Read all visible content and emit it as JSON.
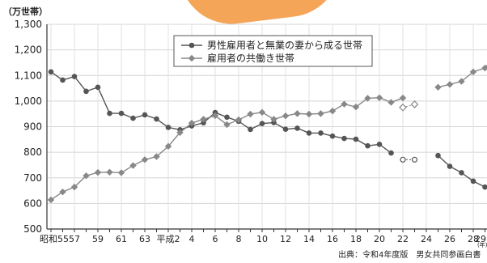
{
  "chart_data": {
    "type": "line",
    "unit_label": "（万世帯）",
    "ylim": [
      500,
      1300
    ],
    "yticks": [
      "1,300",
      "1,200",
      "1,100",
      "1,000",
      "900",
      "800",
      "700",
      "600",
      "500"
    ],
    "x_labels": [
      "昭和55",
      "57",
      "59",
      "61",
      "63",
      "平成2",
      "4",
      "6",
      "8",
      "10",
      "12",
      "14",
      "16",
      "18",
      "20",
      "22",
      "24",
      "26",
      "28",
      "29"
    ],
    "corner_unit": "(年)",
    "legend": {
      "placement": "top-center"
    },
    "series": [
      {
        "name": "男性雇用者と無業の妻から成る世帯",
        "marker": "circle",
        "color": "#555555",
        "values": [
          1114,
          1082,
          1096,
          1038,
          1054,
          952,
          952,
          933,
          946,
          930,
          897,
          888,
          903,
          915,
          955,
          937,
          921,
          889,
          912,
          916,
          890,
          894,
          875,
          875,
          863,
          854,
          851,
          825,
          831,
          797,
          null,
          null,
          null,
          787,
          745,
          720,
          687,
          664,
          641
        ],
        "estimated": [
          [
            30,
            771
          ],
          [
            31,
            771
          ]
        ]
      },
      {
        "name": "雇用者の共働き世帯",
        "marker": "diamond",
        "color": "#888888",
        "values": [
          614,
          645,
          664,
          708,
          721,
          722,
          720,
          748,
          771,
          783,
          823,
          877,
          914,
          929,
          943,
          908,
          927,
          949,
          956,
          929,
          942,
          951,
          949,
          951,
          961,
          988,
          977,
          1011,
          1013,
          995,
          1012,
          null,
          null,
          1054,
          1065,
          1077,
          1114,
          1129,
          1188
        ],
        "estimated": [
          [
            30,
            975
          ],
          [
            31,
            987
          ]
        ]
      }
    ]
  },
  "source_text": "出典：令和4年度版　男女共同参画白書"
}
